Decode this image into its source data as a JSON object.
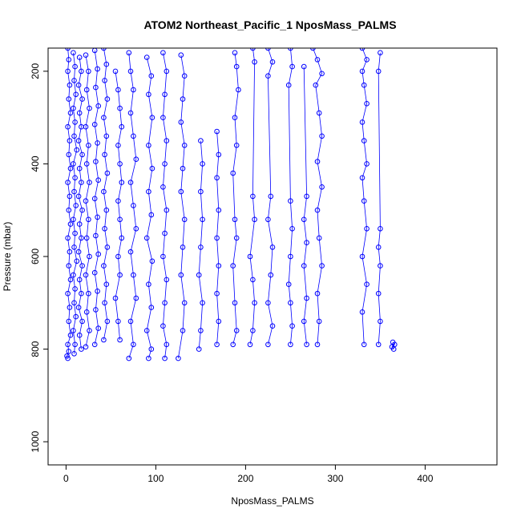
{
  "chart_data": {
    "type": "scatter",
    "title": "ATOM2 Northeast_Pacific_1 NposMass_PALMS",
    "xlabel": "NposMass_PALMS",
    "ylabel": "Pressure (mbar)",
    "xlim": [
      -20,
      480
    ],
    "ylim": [
      1050,
      150
    ],
    "y_reversed": true,
    "x_ticks": [
      0,
      100,
      200,
      300,
      400
    ],
    "y_ticks": [
      200,
      400,
      600,
      800,
      1000
    ],
    "grid": false,
    "legend": "none",
    "marker": "open-circle",
    "colors": {
      "series": "#0000ff",
      "axis": "#000000"
    },
    "series": [
      {
        "values": [
          [
            2,
            150
          ],
          [
            3,
            175
          ],
          [
            2,
            200
          ],
          [
            4,
            230
          ],
          [
            3,
            260
          ],
          [
            5,
            290
          ],
          [
            2,
            320
          ],
          [
            4,
            350
          ],
          [
            3,
            380
          ],
          [
            5,
            410
          ],
          [
            2,
            440
          ],
          [
            4,
            470
          ],
          [
            3,
            500
          ],
          [
            5,
            530
          ],
          [
            2,
            560
          ],
          [
            4,
            590
          ],
          [
            3,
            620
          ],
          [
            5,
            650
          ],
          [
            2,
            680
          ],
          [
            4,
            710
          ],
          [
            3,
            740
          ],
          [
            5,
            770
          ],
          [
            2,
            790
          ],
          [
            3,
            805
          ],
          [
            1,
            815
          ],
          [
            2,
            820
          ]
        ]
      },
      {
        "values": [
          [
            8,
            160
          ],
          [
            10,
            190
          ],
          [
            9,
            220
          ],
          [
            11,
            250
          ],
          [
            8,
            280
          ],
          [
            10,
            310
          ],
          [
            9,
            340
          ],
          [
            12,
            370
          ],
          [
            8,
            400
          ],
          [
            10,
            430
          ],
          [
            9,
            460
          ],
          [
            11,
            490
          ],
          [
            8,
            520
          ],
          [
            10,
            550
          ],
          [
            9,
            580
          ],
          [
            12,
            610
          ],
          [
            8,
            640
          ],
          [
            10,
            670
          ],
          [
            9,
            700
          ],
          [
            11,
            730
          ],
          [
            8,
            760
          ],
          [
            10,
            790
          ],
          [
            9,
            810
          ]
        ]
      },
      {
        "values": [
          [
            15,
            170
          ],
          [
            17,
            200
          ],
          [
            14,
            230
          ],
          [
            18,
            260
          ],
          [
            15,
            290
          ],
          [
            17,
            320
          ],
          [
            14,
            350
          ],
          [
            18,
            380
          ],
          [
            15,
            410
          ],
          [
            17,
            440
          ],
          [
            14,
            470
          ],
          [
            18,
            500
          ],
          [
            15,
            530
          ],
          [
            17,
            560
          ],
          [
            14,
            590
          ],
          [
            18,
            620
          ],
          [
            15,
            650
          ],
          [
            17,
            680
          ],
          [
            14,
            710
          ],
          [
            18,
            740
          ],
          [
            15,
            770
          ],
          [
            17,
            800
          ]
        ]
      },
      {
        "values": [
          [
            22,
            165
          ],
          [
            25,
            200
          ],
          [
            23,
            240
          ],
          [
            26,
            280
          ],
          [
            22,
            320
          ],
          [
            25,
            360
          ],
          [
            23,
            400
          ],
          [
            26,
            440
          ],
          [
            22,
            480
          ],
          [
            25,
            520
          ],
          [
            23,
            560
          ],
          [
            26,
            600
          ],
          [
            22,
            640
          ],
          [
            25,
            680
          ],
          [
            23,
            720
          ],
          [
            26,
            760
          ],
          [
            22,
            795
          ]
        ]
      },
      {
        "values": [
          [
            32,
            155
          ],
          [
            35,
            195
          ],
          [
            33,
            235
          ],
          [
            36,
            275
          ],
          [
            32,
            315
          ],
          [
            35,
            355
          ],
          [
            33,
            395
          ],
          [
            36,
            435
          ],
          [
            32,
            475
          ],
          [
            35,
            515
          ],
          [
            33,
            555
          ],
          [
            36,
            595
          ],
          [
            32,
            635
          ],
          [
            35,
            675
          ],
          [
            33,
            715
          ],
          [
            36,
            755
          ],
          [
            32,
            790
          ]
        ]
      },
      {
        "values": [
          [
            42,
            150
          ],
          [
            45,
            185
          ],
          [
            43,
            220
          ],
          [
            46,
            260
          ],
          [
            42,
            300
          ],
          [
            45,
            340
          ],
          [
            43,
            380
          ],
          [
            46,
            420
          ],
          [
            42,
            460
          ],
          [
            45,
            500
          ],
          [
            43,
            540
          ],
          [
            46,
            580
          ],
          [
            42,
            620
          ],
          [
            45,
            660
          ],
          [
            43,
            700
          ],
          [
            46,
            740
          ],
          [
            42,
            780
          ]
        ]
      },
      {
        "values": [
          [
            55,
            200
          ],
          [
            58,
            240
          ],
          [
            60,
            280
          ],
          [
            62,
            320
          ],
          [
            58,
            360
          ],
          [
            60,
            400
          ],
          [
            62,
            440
          ],
          [
            58,
            480
          ],
          [
            60,
            520
          ],
          [
            62,
            560
          ],
          [
            58,
            600
          ],
          [
            60,
            640
          ],
          [
            55,
            690
          ],
          [
            58,
            740
          ],
          [
            60,
            780
          ]
        ]
      },
      {
        "values": [
          [
            70,
            160
          ],
          [
            72,
            200
          ],
          [
            75,
            240
          ],
          [
            72,
            290
          ],
          [
            75,
            340
          ],
          [
            78,
            390
          ],
          [
            72,
            440
          ],
          [
            75,
            490
          ],
          [
            78,
            540
          ],
          [
            72,
            590
          ],
          [
            75,
            640
          ],
          [
            78,
            690
          ],
          [
            72,
            740
          ],
          [
            75,
            790
          ],
          [
            70,
            820
          ]
        ]
      },
      {
        "values": [
          [
            90,
            170
          ],
          [
            95,
            210
          ],
          [
            92,
            250
          ],
          [
            96,
            300
          ],
          [
            92,
            360
          ],
          [
            96,
            410
          ],
          [
            92,
            460
          ],
          [
            95,
            510
          ],
          [
            90,
            560
          ],
          [
            96,
            610
          ],
          [
            92,
            660
          ],
          [
            95,
            710
          ],
          [
            90,
            760
          ],
          [
            95,
            800
          ],
          [
            92,
            820
          ]
        ]
      },
      {
        "values": [
          [
            108,
            160
          ],
          [
            112,
            200
          ],
          [
            110,
            250
          ],
          [
            108,
            300
          ],
          [
            112,
            350
          ],
          [
            110,
            400
          ],
          [
            108,
            450
          ],
          [
            112,
            500
          ],
          [
            110,
            550
          ],
          [
            108,
            600
          ],
          [
            112,
            650
          ],
          [
            110,
            700
          ],
          [
            108,
            750
          ],
          [
            112,
            790
          ],
          [
            110,
            820
          ]
        ]
      },
      {
        "values": [
          [
            128,
            165
          ],
          [
            132,
            210
          ],
          [
            130,
            260
          ],
          [
            128,
            310
          ],
          [
            132,
            360
          ],
          [
            130,
            410
          ],
          [
            128,
            460
          ],
          [
            132,
            520
          ],
          [
            130,
            580
          ],
          [
            128,
            640
          ],
          [
            132,
            700
          ],
          [
            130,
            760
          ],
          [
            125,
            820
          ]
        ]
      },
      {
        "values": [
          [
            150,
            350
          ],
          [
            152,
            400
          ],
          [
            150,
            460
          ],
          [
            152,
            520
          ],
          [
            150,
            580
          ],
          [
            148,
            640
          ],
          [
            152,
            700
          ],
          [
            150,
            760
          ],
          [
            148,
            800
          ]
        ]
      },
      {
        "values": [
          [
            168,
            330
          ],
          [
            170,
            380
          ],
          [
            168,
            430
          ],
          [
            170,
            500
          ],
          [
            168,
            560
          ],
          [
            170,
            620
          ],
          [
            168,
            680
          ],
          [
            170,
            740
          ],
          [
            168,
            790
          ]
        ]
      },
      {
        "values": [
          [
            188,
            160
          ],
          [
            190,
            190
          ],
          [
            192,
            240
          ],
          [
            188,
            300
          ],
          [
            190,
            360
          ],
          [
            186,
            420
          ],
          [
            188,
            520
          ],
          [
            190,
            560
          ],
          [
            186,
            620
          ],
          [
            188,
            700
          ],
          [
            190,
            760
          ],
          [
            186,
            790
          ]
        ]
      },
      {
        "values": [
          [
            208,
            150
          ],
          [
            210,
            180
          ],
          [
            208,
            470
          ],
          [
            210,
            520
          ],
          [
            205,
            600
          ],
          [
            208,
            650
          ],
          [
            210,
            700
          ],
          [
            208,
            760
          ],
          [
            205,
            790
          ]
        ]
      },
      {
        "values": [
          [
            225,
            150
          ],
          [
            230,
            180
          ],
          [
            225,
            210
          ],
          [
            228,
            470
          ],
          [
            225,
            520
          ],
          [
            230,
            580
          ],
          [
            228,
            640
          ],
          [
            225,
            700
          ],
          [
            230,
            750
          ],
          [
            225,
            790
          ]
        ]
      },
      {
        "values": [
          [
            250,
            150
          ],
          [
            252,
            190
          ],
          [
            248,
            230
          ],
          [
            250,
            480
          ],
          [
            252,
            540
          ],
          [
            250,
            600
          ],
          [
            248,
            660
          ],
          [
            250,
            700
          ],
          [
            252,
            750
          ],
          [
            250,
            790
          ]
        ]
      },
      {
        "values": [
          [
            265,
            190
          ],
          [
            268,
            470
          ],
          [
            265,
            520
          ],
          [
            268,
            570
          ],
          [
            265,
            620
          ],
          [
            268,
            690
          ],
          [
            265,
            740
          ],
          [
            268,
            790
          ]
        ]
      },
      {
        "values": [
          [
            275,
            150
          ],
          [
            280,
            175
          ],
          [
            285,
            205
          ],
          [
            278,
            230
          ],
          [
            282,
            290
          ],
          [
            285,
            340
          ],
          [
            280,
            395
          ],
          [
            285,
            450
          ],
          [
            280,
            500
          ],
          [
            282,
            560
          ],
          [
            285,
            620
          ],
          [
            280,
            680
          ],
          [
            282,
            740
          ],
          [
            280,
            790
          ]
        ]
      },
      {
        "values": [
          [
            330,
            150
          ],
          [
            335,
            175
          ],
          [
            330,
            200
          ],
          [
            332,
            230
          ],
          [
            335,
            270
          ],
          [
            330,
            310
          ],
          [
            332,
            350
          ],
          [
            335,
            400
          ],
          [
            330,
            430
          ],
          [
            332,
            480
          ],
          [
            335,
            540
          ],
          [
            330,
            600
          ],
          [
            335,
            660
          ],
          [
            330,
            720
          ],
          [
            332,
            790
          ]
        ]
      },
      {
        "values": [
          [
            350,
            160
          ],
          [
            348,
            200
          ],
          [
            350,
            540
          ],
          [
            348,
            580
          ],
          [
            350,
            620
          ],
          [
            348,
            680
          ],
          [
            350,
            740
          ],
          [
            348,
            790
          ]
        ]
      },
      {
        "values": [
          [
            364,
            785
          ],
          [
            366,
            790
          ],
          [
            363,
            795
          ],
          [
            365,
            800
          ]
        ]
      }
    ]
  }
}
